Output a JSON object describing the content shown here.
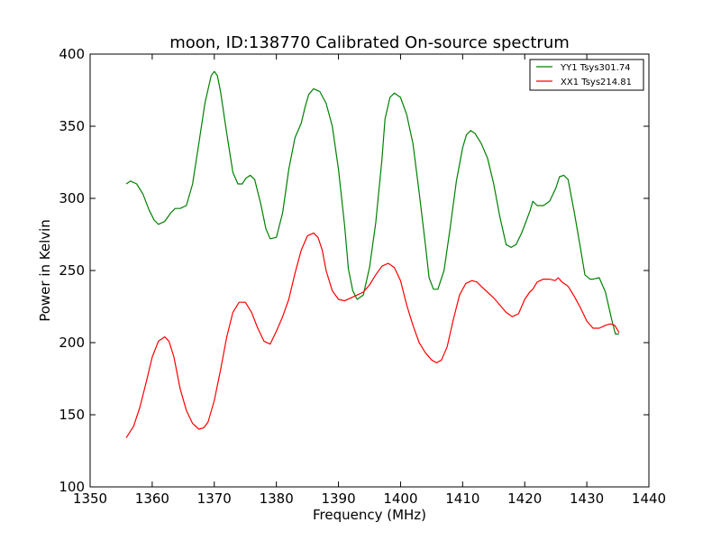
{
  "chart_data": {
    "type": "line",
    "title": "moon, ID:138770 Calibrated On-source spectrum",
    "xlabel": "Frequency (MHz)",
    "ylabel": "Power in Kelvin",
    "xlim": [
      1350,
      1440
    ],
    "ylim": [
      100,
      400
    ],
    "xticks": [
      1350,
      1360,
      1370,
      1380,
      1390,
      1400,
      1410,
      1420,
      1430,
      1440
    ],
    "yticks": [
      100,
      150,
      200,
      250,
      300,
      350,
      400
    ],
    "grid": false,
    "legend_position": "top-right",
    "series": [
      {
        "name": "YY1 Tsys301.74",
        "color": "#008000",
        "x": [
          1355.8,
          1356.5,
          1357.5,
          1358.5,
          1359.5,
          1360.3,
          1361.0,
          1362.0,
          1363.0,
          1363.7,
          1364.5,
          1365.5,
          1366.5,
          1367.5,
          1368.5,
          1369.5,
          1370.0,
          1370.5,
          1371.0,
          1372.0,
          1373.0,
          1373.8,
          1374.5,
          1375.1,
          1375.8,
          1376.5,
          1377.5,
          1378.3,
          1379.0,
          1380.0,
          1381.0,
          1382.0,
          1383.0,
          1384.0,
          1384.6,
          1385.2,
          1386.0,
          1387.0,
          1388.0,
          1389.0,
          1390.0,
          1391.0,
          1391.6,
          1392.3,
          1393.0,
          1394.0,
          1395.0,
          1396.0,
          1397.0,
          1397.5,
          1398.3,
          1399.0,
          1400.0,
          1401.0,
          1402.0,
          1403.0,
          1404.0,
          1404.6,
          1405.3,
          1406.0,
          1407.0,
          1408.0,
          1409.0,
          1410.0,
          1410.6,
          1411.3,
          1412.0,
          1413.0,
          1414.0,
          1415.0,
          1416.0,
          1417.0,
          1417.8,
          1418.6,
          1419.5,
          1420.3,
          1420.9,
          1421.3,
          1422.0,
          1423.0,
          1424.0,
          1425.0,
          1425.6,
          1426.3,
          1427.0,
          1428.0,
          1429.0,
          1429.7,
          1430.5,
          1431.0,
          1432.0,
          1433.0,
          1434.0,
          1434.6,
          1435.2
        ],
        "values": [
          310,
          312,
          310,
          303,
          292,
          285,
          282,
          284,
          290,
          293,
          293,
          295,
          310,
          338,
          366,
          385,
          388,
          385,
          374,
          345,
          318,
          310,
          310,
          314,
          316,
          313,
          296,
          279,
          272,
          273,
          290,
          320,
          342,
          352,
          363,
          372,
          376,
          374,
          366,
          350,
          320,
          281,
          251,
          236,
          230,
          233,
          252,
          283,
          327,
          355,
          370,
          373,
          370,
          358,
          338,
          304,
          268,
          245,
          237,
          237,
          250,
          280,
          312,
          335,
          344,
          347,
          345,
          338,
          328,
          310,
          287,
          268,
          266,
          268,
          276,
          285,
          292,
          298,
          295,
          295,
          298,
          307,
          315,
          316,
          313,
          290,
          265,
          247,
          244,
          244,
          245,
          235,
          216,
          206,
          206
        ]
      },
      {
        "name": "XX1 Tsys214.81",
        "color": "#ff0000",
        "x": [
          1355.8,
          1357.0,
          1358.0,
          1359.0,
          1360.0,
          1361.0,
          1362.0,
          1362.7,
          1363.5,
          1364.5,
          1365.5,
          1366.5,
          1367.5,
          1368.3,
          1369.0,
          1370.0,
          1371.0,
          1372.0,
          1373.0,
          1374.0,
          1375.0,
          1376.0,
          1377.0,
          1378.0,
          1379.0,
          1380.0,
          1381.0,
          1382.0,
          1383.0,
          1384.0,
          1385.0,
          1386.0,
          1386.7,
          1387.4,
          1388.0,
          1389.0,
          1390.0,
          1391.0,
          1392.0,
          1393.0,
          1394.0,
          1395.0,
          1396.0,
          1397.0,
          1398.0,
          1399.0,
          1400.0,
          1401.0,
          1402.0,
          1403.0,
          1404.0,
          1405.0,
          1405.8,
          1406.6,
          1407.5,
          1408.5,
          1409.5,
          1410.5,
          1411.5,
          1412.3,
          1413.0,
          1414.0,
          1415.0,
          1416.0,
          1417.0,
          1418.0,
          1419.0,
          1420.0,
          1420.8,
          1421.3,
          1422.0,
          1423.0,
          1424.0,
          1424.9,
          1425.4,
          1426.0,
          1427.0,
          1428.0,
          1429.0,
          1430.0,
          1431.0,
          1432.0,
          1433.0,
          1433.8,
          1434.5,
          1435.2
        ],
        "values": [
          134,
          142,
          155,
          172,
          190,
          201,
          204,
          201,
          190,
          168,
          153,
          144,
          140,
          141,
          145,
          160,
          181,
          204,
          221,
          228,
          228,
          221,
          210,
          201,
          199,
          208,
          218,
          230,
          248,
          264,
          274,
          276,
          273,
          264,
          250,
          236,
          230,
          229,
          231,
          233,
          235,
          240,
          247,
          253,
          255,
          252,
          243,
          226,
          212,
          200,
          193,
          188,
          186,
          188,
          197,
          216,
          233,
          241,
          243,
          242,
          239,
          235,
          231,
          226,
          221,
          218,
          220,
          230,
          235,
          237,
          242,
          244,
          244,
          243,
          245,
          242,
          239,
          232,
          224,
          215,
          210,
          210,
          212,
          213,
          212,
          207
        ]
      }
    ]
  }
}
